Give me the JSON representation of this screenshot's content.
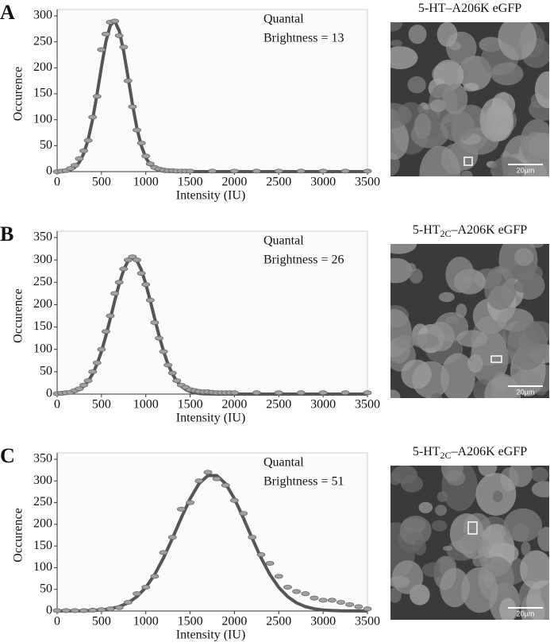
{
  "chart_data": [
    {
      "type": "line",
      "panel_label": "A",
      "xlabel": "Intensity (IU)",
      "ylabel": "Occurence",
      "annotation": [
        "Quantal",
        "Brightness = 13"
      ],
      "x": [
        0,
        50,
        100,
        150,
        200,
        250,
        300,
        350,
        400,
        450,
        500,
        550,
        600,
        650,
        700,
        750,
        800,
        850,
        900,
        950,
        1000,
        1050,
        1100,
        1150,
        1200,
        1250,
        1300,
        1350,
        1400,
        1450,
        1500,
        1750,
        2000,
        2250,
        2500,
        2750,
        3000,
        3250,
        3500
      ],
      "series": [
        {
          "type": "line",
          "color": "#555555",
          "values": [
            0.2,
            0.5,
            1.4,
            3.5,
            8.3,
            17.8,
            34.7,
            61.9,
            100.7,
            149.4,
            202.4,
            250,
            281.6,
            290,
            271.5,
            232.2,
            181.2,
            129,
            83.8,
            49.6,
            26.9,
            13.2,
            5.9,
            2.4,
            0.9,
            0.3,
            0.1,
            0,
            0,
            0,
            0,
            0,
            0,
            0,
            0,
            0,
            0,
            0,
            0
          ]
        },
        {
          "type": "scatter",
          "color": "#a0a0a0",
          "values": [
            0,
            1,
            2,
            6,
            12,
            25,
            40,
            60,
            105,
            145,
            235,
            265,
            288,
            290,
            262,
            240,
            175,
            125,
            80,
            55,
            30,
            15,
            8,
            5,
            3,
            2,
            2,
            1,
            1,
            1,
            1,
            1,
            1,
            1,
            1,
            1,
            1,
            1,
            1
          ]
        }
      ],
      "xlim": [
        0,
        3500
      ],
      "xticks": [
        0,
        500,
        1000,
        1500,
        2000,
        2500,
        3000,
        3500
      ],
      "ylim": [
        0,
        300
      ],
      "yticks": [
        0,
        50,
        100,
        150,
        200,
        250,
        300
      ],
      "image": {
        "title": "5-HT",
        "title_rest": "–A206K eGFP",
        "scale_label": "20µm"
      }
    },
    {
      "type": "line",
      "panel_label": "B",
      "xlabel": "Intensity (IU)",
      "ylabel": "Occurence",
      "annotation": [
        "Quantal",
        "Brightness = 26"
      ],
      "x": [
        0,
        50,
        100,
        150,
        200,
        250,
        300,
        350,
        400,
        450,
        500,
        550,
        600,
        650,
        700,
        750,
        800,
        850,
        900,
        950,
        1000,
        1050,
        1100,
        1150,
        1200,
        1250,
        1300,
        1350,
        1400,
        1450,
        1500,
        1550,
        1600,
        1650,
        1700,
        1750,
        1800,
        1850,
        1900,
        1950,
        2000,
        2250,
        2500,
        2750,
        3000,
        3250,
        3500
      ],
      "series": [
        {
          "type": "line",
          "color": "#555555",
          "values": [
            0.3,
            0.7,
            1.5,
            3.0,
            5.6,
            10.1,
            17.5,
            28.7,
            45,
            67.2,
            95.8,
            130.2,
            169,
            208.9,
            246.5,
            277.5,
            297.9,
            305,
            297.9,
            277.5,
            246.5,
            208.9,
            169,
            130.2,
            95.8,
            67.2,
            45,
            28.7,
            17.5,
            10.1,
            5.6,
            3.0,
            1.5,
            0.7,
            0.3,
            0.1,
            0,
            0,
            0,
            0,
            0,
            0,
            0,
            0,
            0,
            0,
            0
          ]
        },
        {
          "type": "scatter",
          "color": "#a0a0a0",
          "values": [
            1,
            2,
            3,
            4,
            8,
            12,
            20,
            30,
            50,
            70,
            100,
            140,
            175,
            225,
            250,
            280,
            300,
            307,
            300,
            270,
            245,
            210,
            160,
            125,
            95,
            65,
            47,
            30,
            20,
            15,
            10,
            8,
            6,
            5,
            5,
            4,
            3,
            3,
            3,
            3,
            3,
            3,
            3,
            3,
            3,
            3,
            3
          ]
        }
      ],
      "xlim": [
        0,
        3500
      ],
      "xticks": [
        0,
        500,
        1000,
        1500,
        2000,
        2500,
        3000,
        3500
      ],
      "ylim": [
        0,
        350
      ],
      "yticks": [
        0,
        50,
        100,
        150,
        200,
        250,
        300,
        350
      ],
      "image": {
        "title": "5-HT",
        "title_sub": "2C",
        "title_rest": "–A206K eGFP",
        "scale_label": "20µm"
      }
    },
    {
      "type": "line",
      "panel_label": "C",
      "xlabel": "Intensity (IU)",
      "ylabel": "Occurence",
      "annotation": [
        "Quantal",
        "Brightness = 51"
      ],
      "x": [
        0,
        100,
        200,
        300,
        400,
        500,
        600,
        700,
        800,
        900,
        1000,
        1100,
        1200,
        1300,
        1400,
        1500,
        1600,
        1700,
        1800,
        1900,
        2000,
        2100,
        2200,
        2300,
        2400,
        2500,
        2600,
        2700,
        2800,
        2900,
        3000,
        3100,
        3200,
        3300,
        3400,
        3500
      ],
      "series": [
        {
          "type": "line",
          "color": "#555555",
          "values": [
            0,
            0.1,
            0.2,
            0.4,
            1.1,
            2.4,
            5.1,
            10.1,
            18.8,
            32.9,
            54.3,
            84.1,
            122.5,
            167.3,
            214.8,
            259.2,
            293.6,
            312.5,
            312.5,
            293.6,
            259.2,
            214.8,
            167.3,
            122.5,
            84.1,
            54.3,
            32.9,
            18.8,
            10.1,
            5.1,
            2.4,
            1.1,
            0.4,
            0.2,
            0.1,
            0
          ]
        },
        {
          "type": "scatter",
          "color": "#a0a0a0",
          "values": [
            1,
            1,
            1,
            1,
            2,
            3,
            5,
            8,
            20,
            40,
            55,
            80,
            135,
            170,
            235,
            250,
            300,
            320,
            305,
            290,
            255,
            225,
            170,
            130,
            110,
            80,
            55,
            45,
            40,
            30,
            25,
            25,
            20,
            15,
            10,
            5
          ]
        }
      ],
      "xlim": [
        0,
        3500
      ],
      "xticks": [
        0,
        500,
        1000,
        1500,
        2000,
        2500,
        3000,
        3500
      ],
      "ylim": [
        0,
        350
      ],
      "yticks": [
        0,
        50,
        100,
        150,
        200,
        250,
        300,
        350
      ],
      "image": {
        "title": "5-HT",
        "title_sub": "2C",
        "title_rest": "–A206K eGFP",
        "scale_label": "20µm"
      }
    }
  ]
}
